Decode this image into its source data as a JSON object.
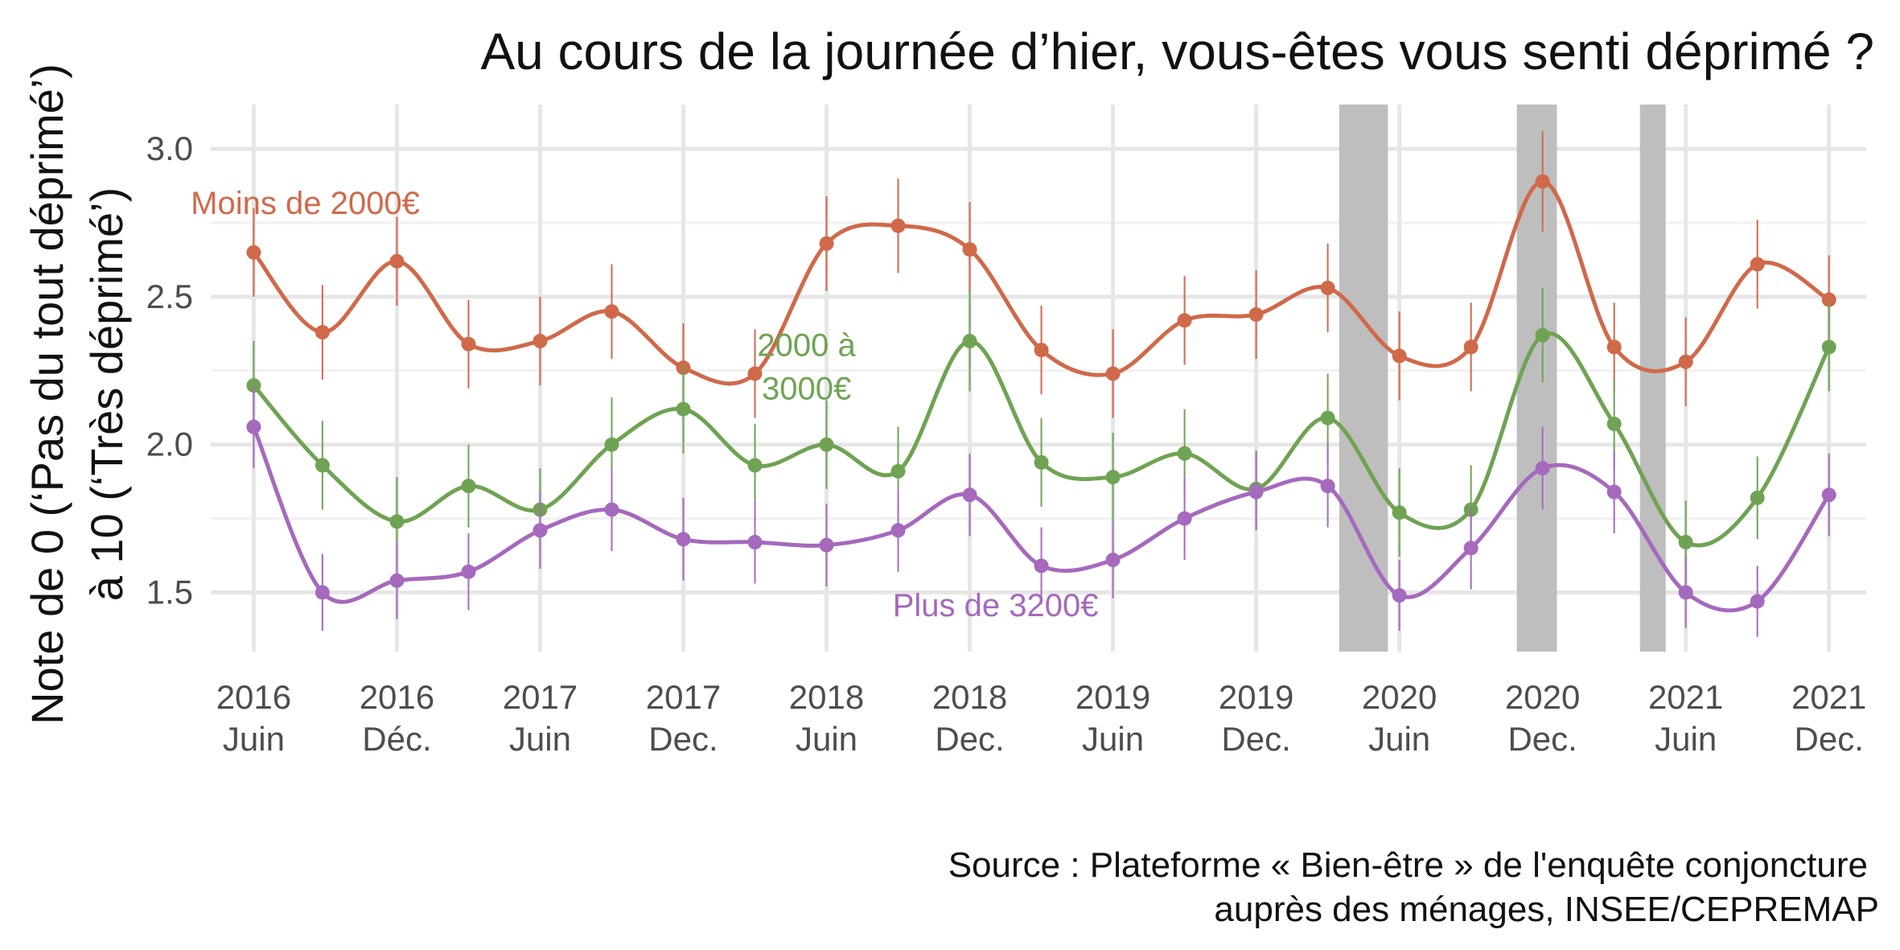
{
  "chart_data": {
    "type": "line",
    "title": "Au cours de la journée d’hier, vous-êtes vous senti déprimé ?",
    "ylabel": [
      "Note de 0 (‘Pas du tout déprimé’)",
      "à 10 (‘Très déprimé’)"
    ],
    "source": [
      "Source : Plateforme « Bien-être » de l'enquête conjoncture",
      "auprès des ménages, INSEE/CEPREMAP"
    ],
    "ylim": [
      1.3,
      3.15
    ],
    "y_ticks": [
      {
        "value": 1.5,
        "label": "1.5"
      },
      {
        "value": 2.0,
        "label": "2.0"
      },
      {
        "value": 2.5,
        "label": "2.5"
      },
      {
        "value": 3.0,
        "label": "3.0"
      }
    ],
    "x_range": [
      2016.27,
      2022.05
    ],
    "x_ticks": [
      {
        "x": 2016.42,
        "label": [
          "2016",
          "Juin"
        ]
      },
      {
        "x": 2016.92,
        "label": [
          "2016",
          "Déc."
        ]
      },
      {
        "x": 2017.42,
        "label": [
          "2017",
          "Juin"
        ]
      },
      {
        "x": 2017.92,
        "label": [
          "2017",
          "Dec."
        ]
      },
      {
        "x": 2018.42,
        "label": [
          "2018",
          "Juin"
        ]
      },
      {
        "x": 2018.92,
        "label": [
          "2018",
          "Dec."
        ]
      },
      {
        "x": 2019.42,
        "label": [
          "2019",
          "Juin"
        ]
      },
      {
        "x": 2019.92,
        "label": [
          "2019",
          "Dec."
        ]
      },
      {
        "x": 2020.42,
        "label": [
          "2020",
          "Juin"
        ]
      },
      {
        "x": 2020.92,
        "label": [
          "2020",
          "Dec."
        ]
      },
      {
        "x": 2021.42,
        "label": [
          "2021",
          "Juin"
        ]
      },
      {
        "x": 2021.92,
        "label": [
          "2021",
          "Dec."
        ]
      }
    ],
    "shaded_periods": [
      [
        2020.21,
        2020.38
      ],
      [
        2020.83,
        2020.97
      ],
      [
        2021.26,
        2021.35
      ]
    ],
    "grid": true,
    "series": [
      {
        "name": "Moins de 2000€",
        "color": "#d0694a",
        "label_at": [
          2016.6,
          2.78
        ],
        "label_lines": [
          "Moins de 2000€"
        ],
        "points": [
          {
            "x": 2016.42,
            "y": 2.65,
            "lo": 2.5,
            "hi": 2.8
          },
          {
            "x": 2016.66,
            "y": 2.38,
            "lo": 2.22,
            "hi": 2.54
          },
          {
            "x": 2016.92,
            "y": 2.62,
            "lo": 2.47,
            "hi": 2.77
          },
          {
            "x": 2017.17,
            "y": 2.34,
            "lo": 2.19,
            "hi": 2.49
          },
          {
            "x": 2017.42,
            "y": 2.35,
            "lo": 2.2,
            "hi": 2.5
          },
          {
            "x": 2017.67,
            "y": 2.45,
            "lo": 2.29,
            "hi": 2.61
          },
          {
            "x": 2017.92,
            "y": 2.26,
            "lo": 2.11,
            "hi": 2.41
          },
          {
            "x": 2018.17,
            "y": 2.24,
            "lo": 2.09,
            "hi": 2.39
          },
          {
            "x": 2018.42,
            "y": 2.68,
            "lo": 2.52,
            "hi": 2.84
          },
          {
            "x": 2018.67,
            "y": 2.74,
            "lo": 2.58,
            "hi": 2.9
          },
          {
            "x": 2018.92,
            "y": 2.66,
            "lo": 2.5,
            "hi": 2.82
          },
          {
            "x": 2019.17,
            "y": 2.32,
            "lo": 2.17,
            "hi": 2.47
          },
          {
            "x": 2019.42,
            "y": 2.24,
            "lo": 2.09,
            "hi": 2.39
          },
          {
            "x": 2019.67,
            "y": 2.42,
            "lo": 2.27,
            "hi": 2.57
          },
          {
            "x": 2019.92,
            "y": 2.44,
            "lo": 2.29,
            "hi": 2.59
          },
          {
            "x": 2020.17,
            "y": 2.53,
            "lo": 2.38,
            "hi": 2.68
          },
          {
            "x": 2020.42,
            "y": 2.3,
            "lo": 2.15,
            "hi": 2.45
          },
          {
            "x": 2020.67,
            "y": 2.33,
            "lo": 2.18,
            "hi": 2.48
          },
          {
            "x": 2020.92,
            "y": 2.89,
            "lo": 2.72,
            "hi": 3.06
          },
          {
            "x": 2021.17,
            "y": 2.33,
            "lo": 2.18,
            "hi": 2.48
          },
          {
            "x": 2021.42,
            "y": 2.28,
            "lo": 2.13,
            "hi": 2.43
          },
          {
            "x": 2021.67,
            "y": 2.61,
            "lo": 2.46,
            "hi": 2.76
          },
          {
            "x": 2021.92,
            "y": 2.49,
            "lo": 2.34,
            "hi": 2.64
          }
        ]
      },
      {
        "name": "2000 à 3000€",
        "color": "#6fa353",
        "label_at": [
          2018.35,
          2.3
        ],
        "label_lines": [
          "2000 à",
          "3000€"
        ],
        "points": [
          {
            "x": 2016.42,
            "y": 2.2,
            "lo": 2.05,
            "hi": 2.35
          },
          {
            "x": 2016.66,
            "y": 1.93,
            "lo": 1.78,
            "hi": 2.08
          },
          {
            "x": 2016.92,
            "y": 1.74,
            "lo": 1.59,
            "hi": 1.89
          },
          {
            "x": 2017.17,
            "y": 1.86,
            "lo": 1.72,
            "hi": 2.0
          },
          {
            "x": 2017.42,
            "y": 1.78,
            "lo": 1.64,
            "hi": 1.92
          },
          {
            "x": 2017.67,
            "y": 2.0,
            "lo": 1.84,
            "hi": 2.16
          },
          {
            "x": 2017.92,
            "y": 2.12,
            "lo": 1.97,
            "hi": 2.27
          },
          {
            "x": 2018.17,
            "y": 1.93,
            "lo": 1.79,
            "hi": 2.07
          },
          {
            "x": 2018.42,
            "y": 2.0,
            "lo": 1.85,
            "hi": 2.15
          },
          {
            "x": 2018.67,
            "y": 1.91,
            "lo": 1.76,
            "hi": 2.06
          },
          {
            "x": 2018.92,
            "y": 2.35,
            "lo": 2.18,
            "hi": 2.52
          },
          {
            "x": 2019.17,
            "y": 1.94,
            "lo": 1.79,
            "hi": 2.09
          },
          {
            "x": 2019.42,
            "y": 1.89,
            "lo": 1.74,
            "hi": 2.04
          },
          {
            "x": 2019.67,
            "y": 1.97,
            "lo": 1.82,
            "hi": 2.12
          },
          {
            "x": 2019.92,
            "y": 1.85,
            "lo": 1.72,
            "hi": 1.98
          },
          {
            "x": 2020.17,
            "y": 2.09,
            "lo": 1.94,
            "hi": 2.24
          },
          {
            "x": 2020.42,
            "y": 1.77,
            "lo": 1.62,
            "hi": 1.92
          },
          {
            "x": 2020.67,
            "y": 1.78,
            "lo": 1.63,
            "hi": 1.93
          },
          {
            "x": 2020.92,
            "y": 2.37,
            "lo": 2.21,
            "hi": 2.53
          },
          {
            "x": 2021.17,
            "y": 2.07,
            "lo": 1.92,
            "hi": 2.22
          },
          {
            "x": 2021.42,
            "y": 1.67,
            "lo": 1.53,
            "hi": 1.81
          },
          {
            "x": 2021.67,
            "y": 1.82,
            "lo": 1.68,
            "hi": 1.96
          },
          {
            "x": 2021.92,
            "y": 2.33,
            "lo": 2.18,
            "hi": 2.48
          }
        ]
      },
      {
        "name": "Plus de 3200€",
        "color": "#a569bd",
        "label_at": [
          2019.01,
          1.42
        ],
        "label_lines": [
          "Plus de 3200€"
        ],
        "points": [
          {
            "x": 2016.42,
            "y": 2.06,
            "lo": 1.92,
            "hi": 2.2
          },
          {
            "x": 2016.66,
            "y": 1.5,
            "lo": 1.37,
            "hi": 1.63
          },
          {
            "x": 2016.92,
            "y": 1.54,
            "lo": 1.41,
            "hi": 1.67
          },
          {
            "x": 2017.17,
            "y": 1.57,
            "lo": 1.44,
            "hi": 1.7
          },
          {
            "x": 2017.42,
            "y": 1.71,
            "lo": 1.58,
            "hi": 1.84
          },
          {
            "x": 2017.67,
            "y": 1.78,
            "lo": 1.64,
            "hi": 1.92
          },
          {
            "x": 2017.92,
            "y": 1.68,
            "lo": 1.54,
            "hi": 1.82
          },
          {
            "x": 2018.17,
            "y": 1.67,
            "lo": 1.53,
            "hi": 1.81
          },
          {
            "x": 2018.42,
            "y": 1.66,
            "lo": 1.52,
            "hi": 1.8
          },
          {
            "x": 2018.67,
            "y": 1.71,
            "lo": 1.57,
            "hi": 1.85
          },
          {
            "x": 2018.92,
            "y": 1.83,
            "lo": 1.69,
            "hi": 1.97
          },
          {
            "x": 2019.17,
            "y": 1.59,
            "lo": 1.46,
            "hi": 1.72
          },
          {
            "x": 2019.42,
            "y": 1.61,
            "lo": 1.48,
            "hi": 1.74
          },
          {
            "x": 2019.67,
            "y": 1.75,
            "lo": 1.61,
            "hi": 1.89
          },
          {
            "x": 2019.92,
            "y": 1.84,
            "lo": 1.71,
            "hi": 1.97
          },
          {
            "x": 2020.17,
            "y": 1.86,
            "lo": 1.72,
            "hi": 2.0
          },
          {
            "x": 2020.42,
            "y": 1.49,
            "lo": 1.37,
            "hi": 1.61
          },
          {
            "x": 2020.67,
            "y": 1.65,
            "lo": 1.51,
            "hi": 1.79
          },
          {
            "x": 2020.92,
            "y": 1.92,
            "lo": 1.78,
            "hi": 2.06
          },
          {
            "x": 2021.17,
            "y": 1.84,
            "lo": 1.7,
            "hi": 1.98
          },
          {
            "x": 2021.42,
            "y": 1.5,
            "lo": 1.38,
            "hi": 1.62
          },
          {
            "x": 2021.67,
            "y": 1.47,
            "lo": 1.35,
            "hi": 1.59
          },
          {
            "x": 2021.92,
            "y": 1.83,
            "lo": 1.69,
            "hi": 1.97
          }
        ]
      }
    ]
  }
}
